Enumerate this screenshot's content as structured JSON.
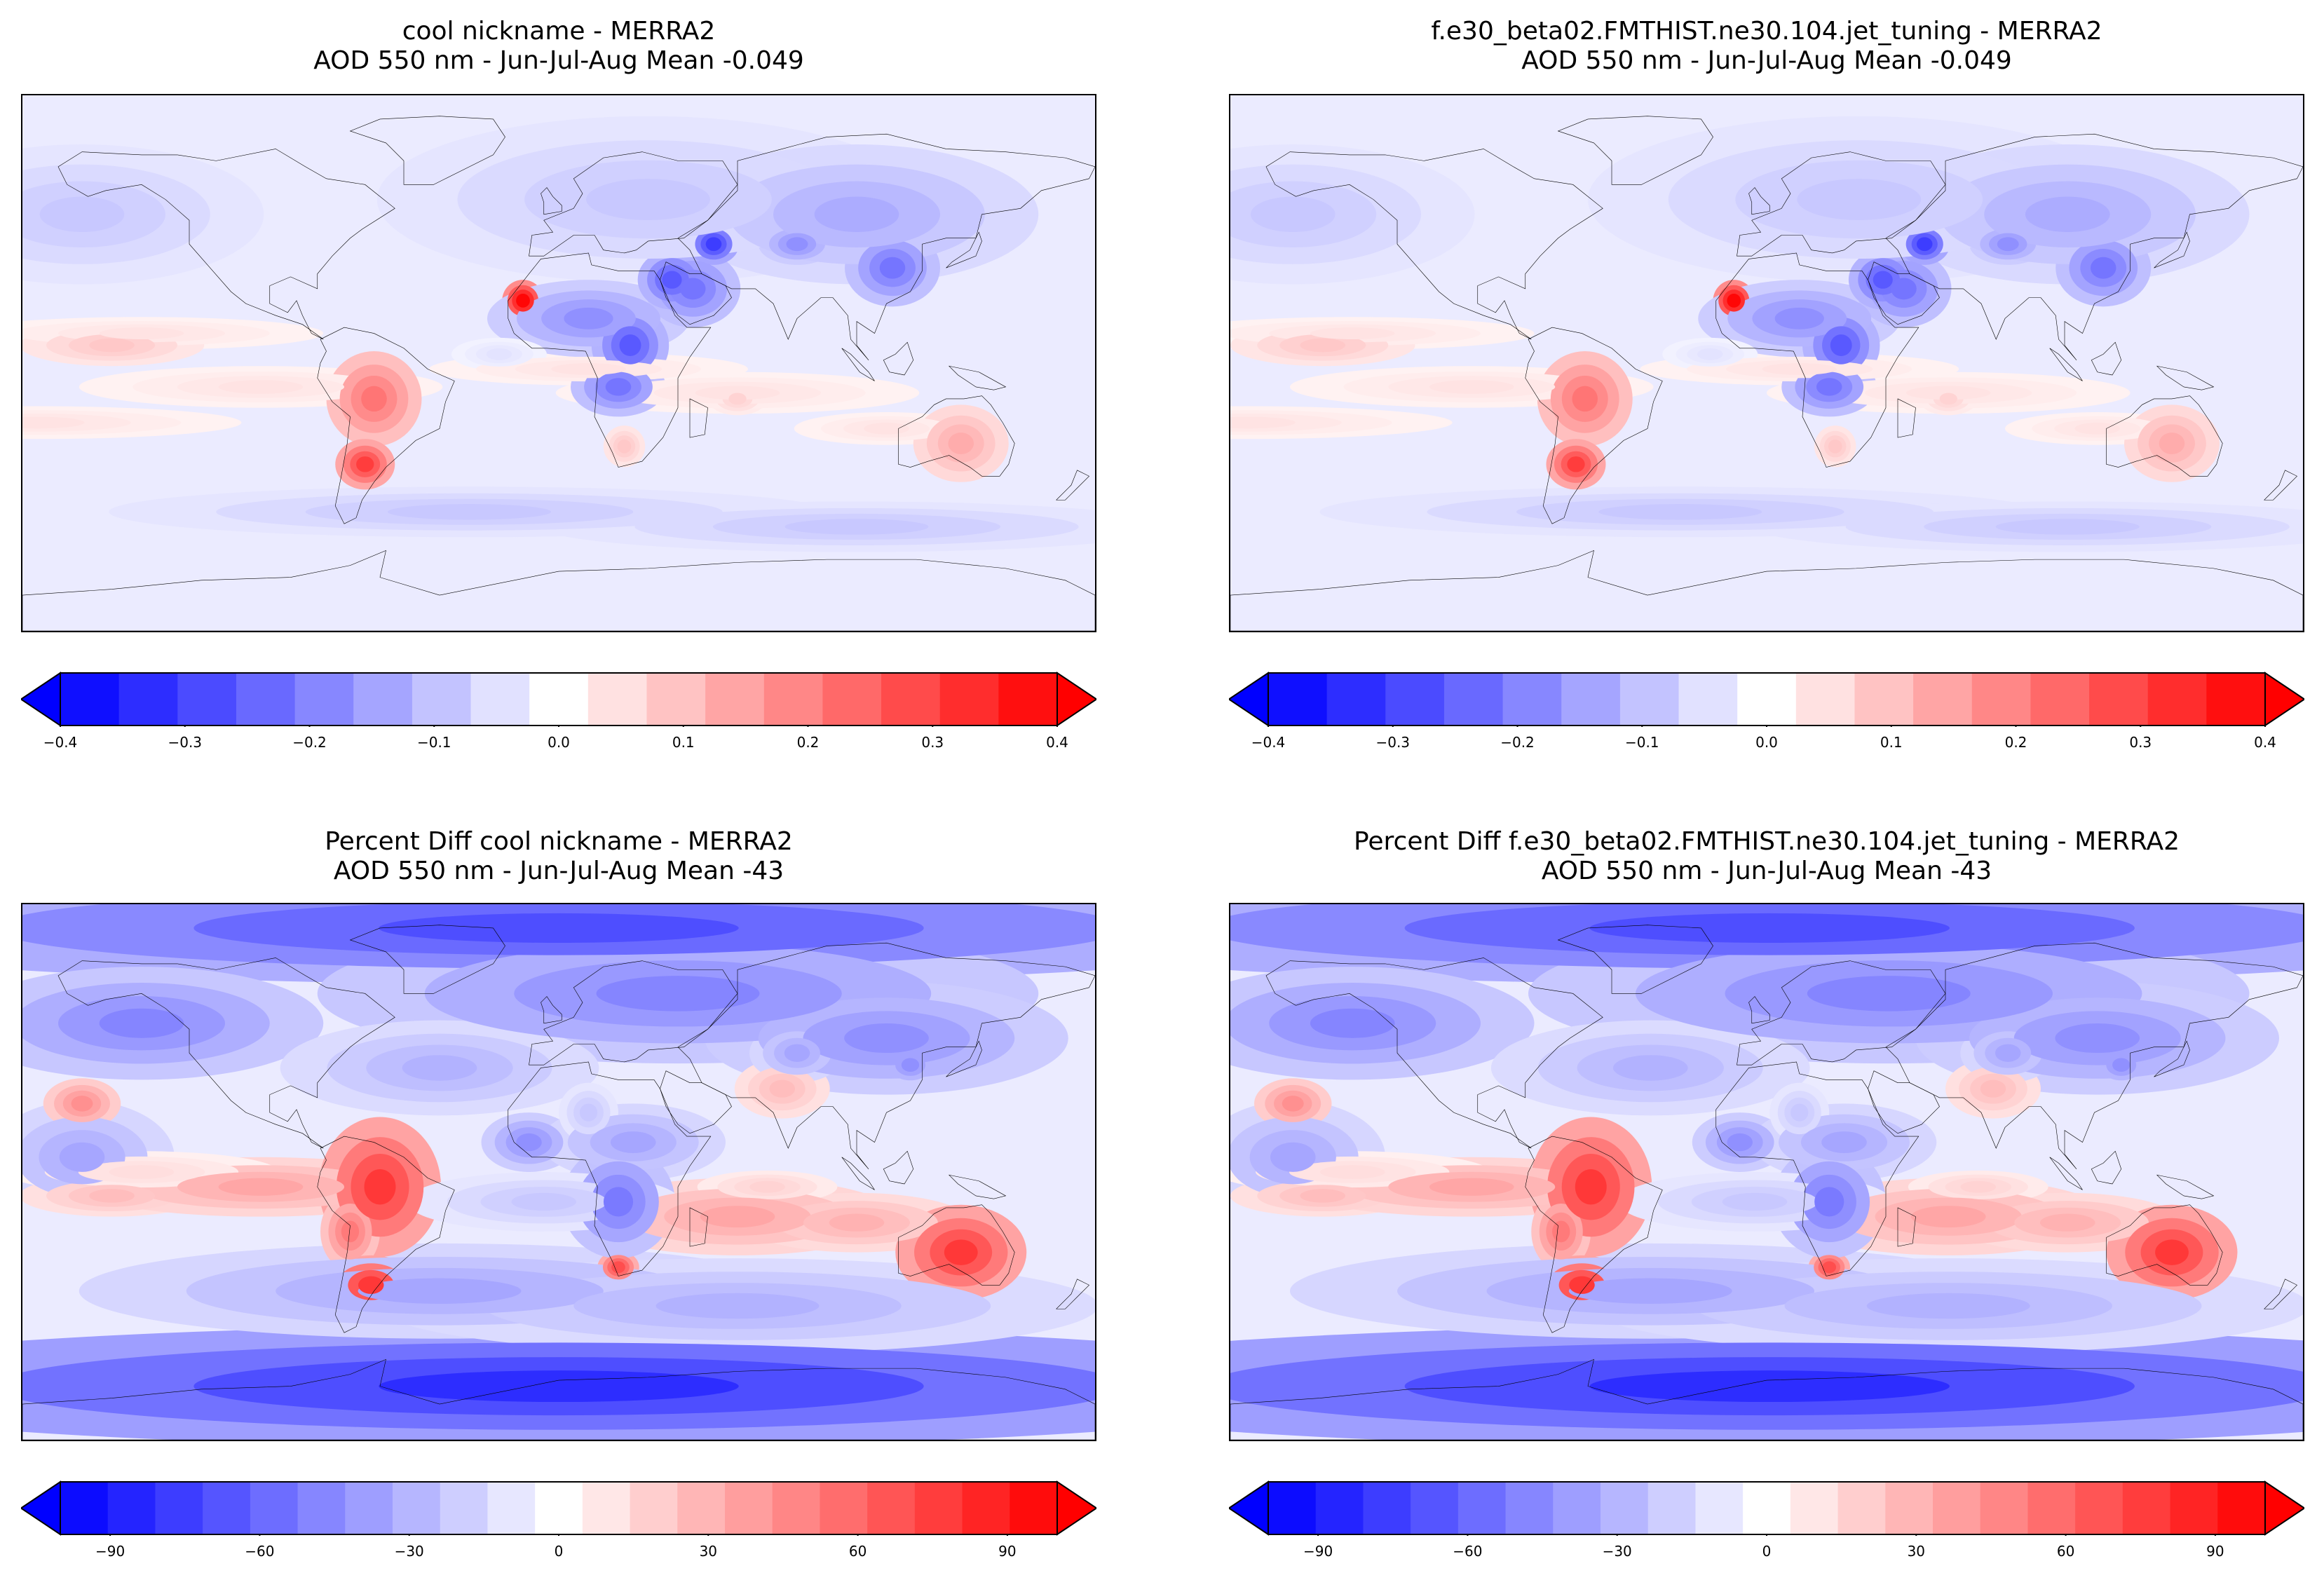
{
  "chart_data": [
    {
      "type": "heatmap",
      "title_line1": "cool nickname - MERRA2",
      "title_line2": "AOD 550 nm - Jun-Jul-Aug  Mean -0.049",
      "colorbar": {
        "min": -0.4,
        "max": 0.4,
        "levels": 17,
        "ticks": [
          "−0.4",
          "−0.3",
          "−0.2",
          "−0.1",
          "0.0",
          "0.1",
          "0.2",
          "0.3",
          "0.4"
        ],
        "extend": "both"
      }
    },
    {
      "type": "heatmap",
      "title_line1": "f.e30_beta02.FMTHIST.ne30.104.jet_tuning - MERRA2",
      "title_line2": "AOD 550 nm - Jun-Jul-Aug  Mean -0.049",
      "colorbar": {
        "min": -0.4,
        "max": 0.4,
        "levels": 17,
        "ticks": [
          "−0.4",
          "−0.3",
          "−0.2",
          "−0.1",
          "0.0",
          "0.1",
          "0.2",
          "0.3",
          "0.4"
        ],
        "extend": "both"
      }
    },
    {
      "type": "heatmap",
      "title_line1": "Percent Diff cool nickname - MERRA2",
      "title_line2": "AOD 550 nm - Jun-Jul-Aug  Mean -43",
      "colorbar": {
        "min": -100,
        "max": 100,
        "levels": 21,
        "ticks": [
          "−90",
          "−60",
          "−30",
          "0",
          "30",
          "60",
          "90"
        ],
        "extend": "both"
      }
    },
    {
      "type": "heatmap",
      "title_line1": "Percent Diff f.e30_beta02.FMTHIST.ne30.104.jet_tuning - MERRA2",
      "title_line2": "AOD 550 nm - Jun-Jul-Aug  Mean -43",
      "colorbar": {
        "min": -100,
        "max": 100,
        "levels": 21,
        "ticks": [
          "−90",
          "−60",
          "−30",
          "0",
          "30",
          "60",
          "90"
        ],
        "extend": "both"
      }
    }
  ],
  "colors": {
    "neg": "#0000ff",
    "zero": "#ffffff",
    "pos": "#ff0000"
  }
}
